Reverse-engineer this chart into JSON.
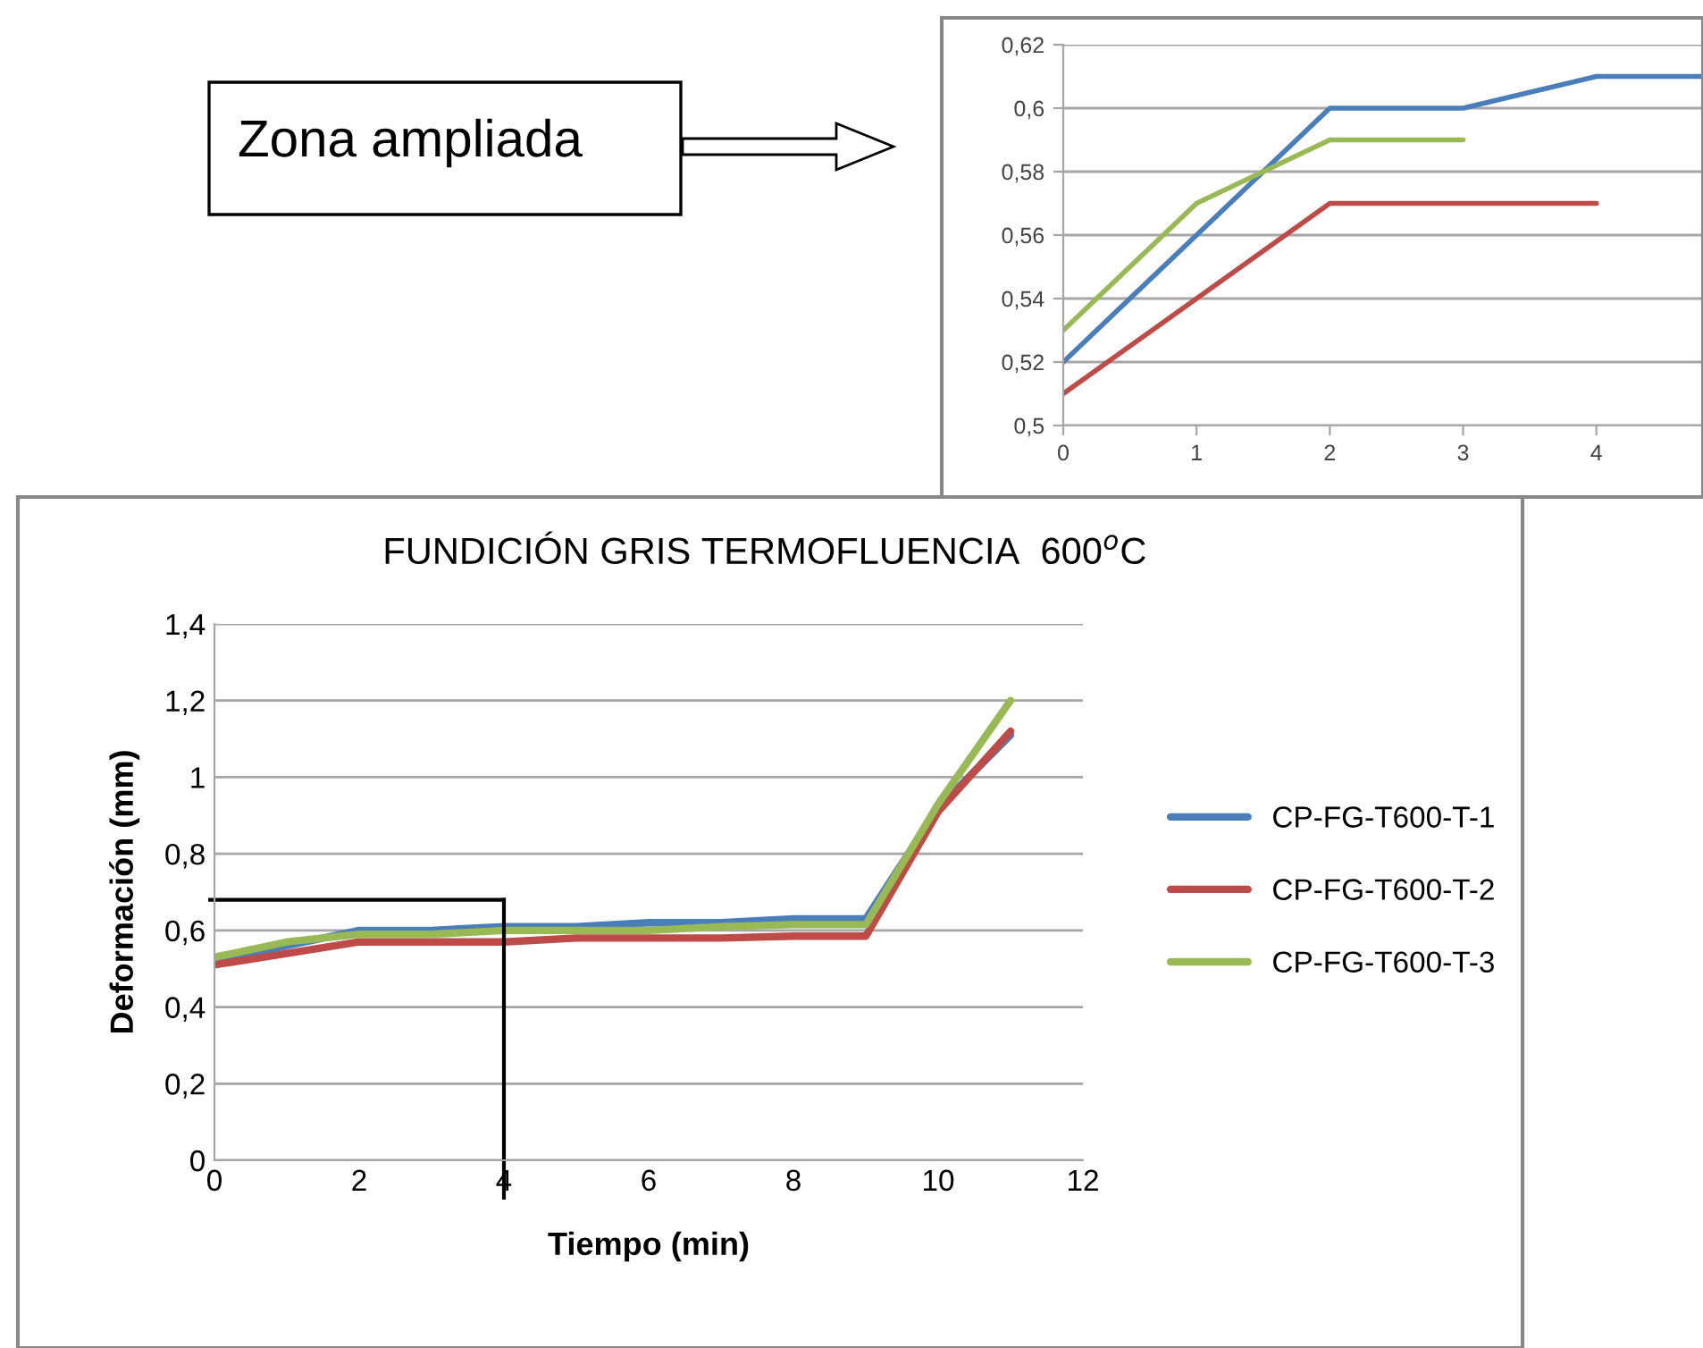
{
  "chart_data": [
    {
      "type": "line",
      "annotations": [
        "Zona ampliada"
      ],
      "series": [
        {
          "color": "#4a7ebb",
          "x": [
            0,
            1,
            2,
            3,
            4,
            4.8
          ],
          "values": [
            0.52,
            0.56,
            0.6,
            0.6,
            0.61,
            0.61
          ]
        },
        {
          "color": "#be4b48",
          "x": [
            0,
            1,
            2,
            3,
            4
          ],
          "values": [
            0.51,
            0.54,
            0.57,
            0.57,
            0.57
          ]
        },
        {
          "color": "#98b954",
          "x": [
            0,
            1,
            2,
            3
          ],
          "values": [
            0.53,
            0.57,
            0.59,
            0.59
          ]
        }
      ],
      "xlim": [
        0,
        4.8
      ],
      "xticks": [
        0,
        1,
        2,
        3,
        4
      ],
      "ylim": [
        0.5,
        0.62
      ],
      "yticks": [
        {
          "value": 0.5,
          "label": "0,5"
        },
        {
          "value": 0.52,
          "label": "0,52"
        },
        {
          "value": 0.54,
          "label": "0,54"
        },
        {
          "value": 0.56,
          "label": "0,56"
        },
        {
          "value": 0.58,
          "label": "0,58"
        },
        {
          "value": 0.6,
          "label": "0,6"
        },
        {
          "value": 0.62,
          "label": "0,62"
        }
      ],
      "grid": "y"
    },
    {
      "type": "line",
      "title": "FUNDICIÓN GRIS TERMOFLUENCIA  600$^{o}$C",
      "xlabel": "Tiempo (min)",
      "ylabel": "Deformación (mm)",
      "x": [
        0,
        1,
        2,
        3,
        4,
        5,
        6,
        7,
        8,
        9,
        10,
        11
      ],
      "series": [
        {
          "name": "CP-FG-T600-T-1",
          "color": "#4a7ebb",
          "values": [
            0.52,
            0.56,
            0.6,
            0.6,
            0.61,
            0.61,
            0.62,
            0.62,
            0.63,
            0.63,
            0.92,
            1.11
          ]
        },
        {
          "name": "CP-FG-T600-T-2",
          "color": "#be4b48",
          "values": [
            0.51,
            0.54,
            0.57,
            0.57,
            0.57,
            0.58,
            0.58,
            0.58,
            0.585,
            0.585,
            0.91,
            1.12
          ]
        },
        {
          "name": "CP-FG-T600-T-3",
          "color": "#98b954",
          "values": [
            0.53,
            0.57,
            0.59,
            0.59,
            0.6,
            0.6,
            0.6,
            0.61,
            0.615,
            0.615,
            0.93,
            1.2
          ]
        }
      ],
      "xlim": [
        0,
        12
      ],
      "xticks": [
        0,
        2,
        4,
        6,
        8,
        10,
        12
      ],
      "ylim": [
        0,
        1.4
      ],
      "yticks": [
        0,
        {
          "value": 0.2,
          "label": "0,2"
        },
        {
          "value": 0.4,
          "label": "0,4"
        },
        {
          "value": 0.6,
          "label": "0,6"
        },
        {
          "value": 0.8,
          "label": "0,8"
        },
        1,
        {
          "value": 1.2,
          "label": "1,2"
        },
        {
          "value": 1.4,
          "label": "1,4"
        }
      ],
      "ref_lines": [
        {
          "axis": "x",
          "value": 4,
          "color": "#000000"
        },
        {
          "axis": "y",
          "value": 0.68,
          "color": "#000000"
        }
      ],
      "grid": "y",
      "legend": "right"
    }
  ]
}
